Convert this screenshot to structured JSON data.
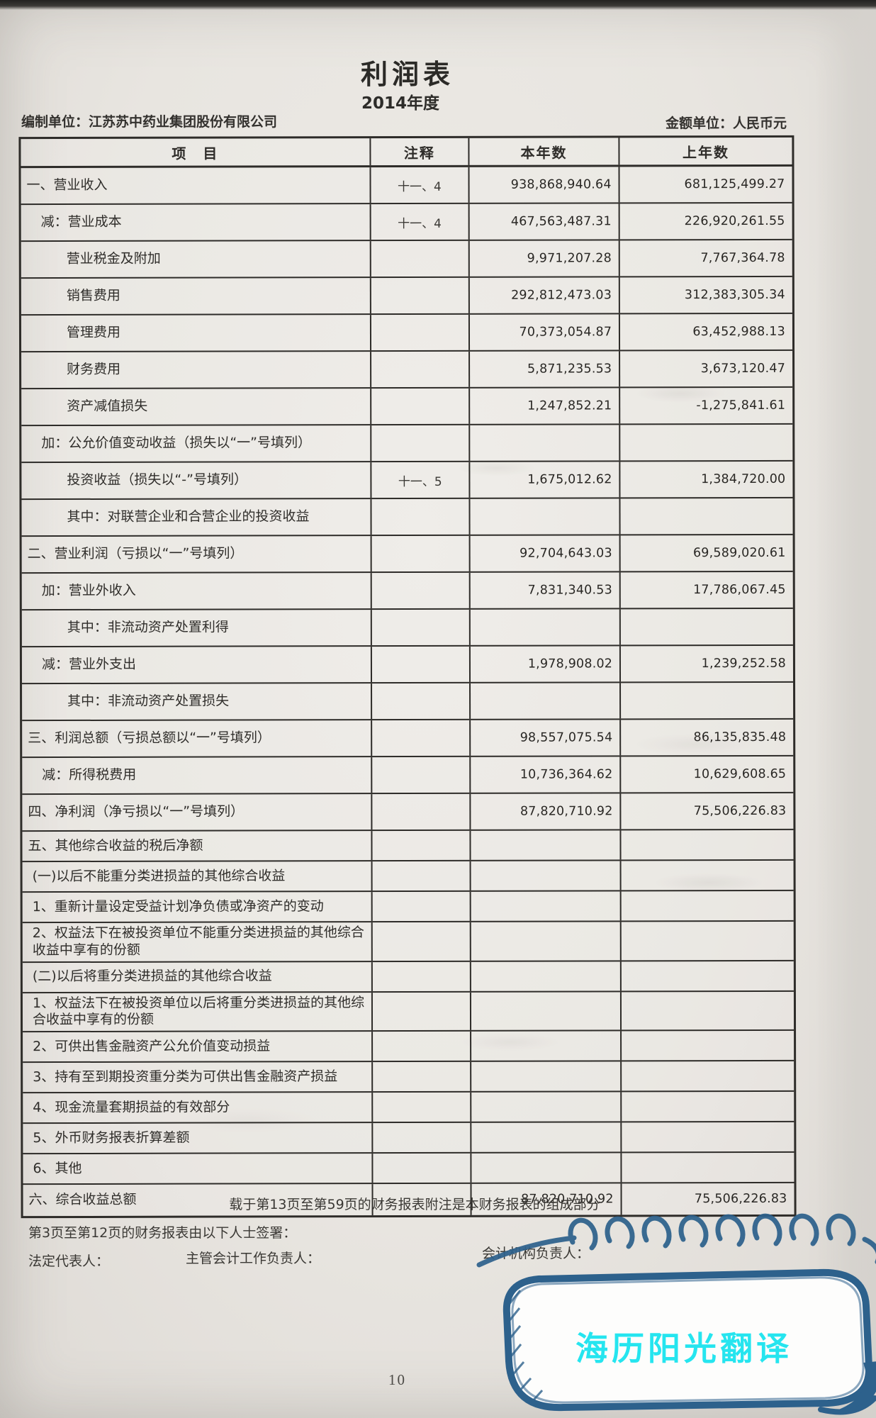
{
  "document": {
    "title": "利润表",
    "period": "2014年度",
    "prepared_by": "编制单位：江苏苏中药业集团股份有限公司",
    "currency_note": "金额单位：人民币元",
    "footnote": "载于第13页至第59页的财务报表附注是本财务报表的组成部分",
    "signature_intro": "第3页至第12页的财务报表由以下人士签署：",
    "signatory_legal": "法定代表人：",
    "signatory_chief_accounting": "主管会计工作负责人：",
    "signatory_accounting_dept": "会计机构负责人：",
    "page_number": "10",
    "watermark": "海历阳光翻译"
  },
  "colors": {
    "paper": "#e8e5e0",
    "table_line": "#2e2c29",
    "doodle_blue": "#2d618c",
    "watermark_cyan": "#25e5ef"
  },
  "table": {
    "headers": [
      "项　目",
      "注释",
      "本年数",
      "上年数"
    ],
    "rows": [
      {
        "item": "一、营业收入",
        "note": "十一、4",
        "current": "938,868,940.64",
        "prior": "681,125,499.27",
        "indent": 0
      },
      {
        "item": "减：营业成本",
        "note": "十一、4",
        "current": "467,563,487.31",
        "prior": "226,920,261.55",
        "indent": 1
      },
      {
        "item": "营业税金及附加",
        "note": "",
        "current": "9,971,207.28",
        "prior": "7,767,364.78",
        "indent": 2
      },
      {
        "item": "销售费用",
        "note": "",
        "current": "292,812,473.03",
        "prior": "312,383,305.34",
        "indent": 2
      },
      {
        "item": "管理费用",
        "note": "",
        "current": "70,373,054.87",
        "prior": "63,452,988.13",
        "indent": 2
      },
      {
        "item": "财务费用",
        "note": "",
        "current": "5,871,235.53",
        "prior": "3,673,120.47",
        "indent": 2
      },
      {
        "item": "资产减值损失",
        "note": "",
        "current": "1,247,852.21",
        "prior": "-1,275,841.61",
        "indent": 2
      },
      {
        "item": "加：公允价值变动收益（损失以“一”号填列）",
        "note": "",
        "current": "",
        "prior": "",
        "indent": 1
      },
      {
        "item": "投资收益（损失以“-”号填列）",
        "note": "十一、5",
        "current": "1,675,012.62",
        "prior": "1,384,720.00",
        "indent": 2
      },
      {
        "item": "其中：对联营企业和合营企业的投资收益",
        "note": "",
        "current": "",
        "prior": "",
        "indent": 2
      },
      {
        "item": "二、营业利润（亏损以“一”号填列）",
        "note": "",
        "current": "92,704,643.03",
        "prior": "69,589,020.61",
        "indent": 0
      },
      {
        "item": "加：营业外收入",
        "note": "",
        "current": "7,831,340.53",
        "prior": "17,786,067.45",
        "indent": 1
      },
      {
        "item": "其中：非流动资产处置利得",
        "note": "",
        "current": "",
        "prior": "",
        "indent": 2
      },
      {
        "item": "减：营业外支出",
        "note": "",
        "current": "1,978,908.02",
        "prior": "1,239,252.58",
        "indent": 1
      },
      {
        "item": "其中：非流动资产处置损失",
        "note": "",
        "current": "",
        "prior": "",
        "indent": 2
      },
      {
        "item": "三、利润总额（亏损总额以“一”号填列）",
        "note": "",
        "current": "98,557,075.54",
        "prior": "86,135,835.48",
        "indent": 0
      },
      {
        "item": "减：所得税费用",
        "note": "",
        "current": "10,736,364.62",
        "prior": "10,629,608.65",
        "indent": 1
      },
      {
        "item": "四、净利润（净亏损以“一”号填列）",
        "note": "",
        "current": "87,820,710.92",
        "prior": "75,506,226.83",
        "indent": 0
      },
      {
        "item": "五、其他综合收益的税后净额",
        "note": "",
        "current": "",
        "prior": "",
        "indent": 0
      },
      {
        "item": "(一)以后不能重分类进损益的其他综合收益",
        "note": "",
        "current": "",
        "prior": "",
        "indent": 3
      },
      {
        "item": "1、重新计量设定受益计划净负债或净资产的变动",
        "note": "",
        "current": "",
        "prior": "",
        "indent": 3
      },
      {
        "item": "2、权益法下在被投资单位不能重分类进损益的其他综合收益中享有的份额",
        "note": "",
        "current": "",
        "prior": "",
        "indent": 3
      },
      {
        "item": "(二)以后将重分类进损益的其他综合收益",
        "note": "",
        "current": "",
        "prior": "",
        "indent": 3
      },
      {
        "item": "1、权益法下在被投资单位以后将重分类进损益的其他综合收益中享有的份额",
        "note": "",
        "current": "",
        "prior": "",
        "indent": 3
      },
      {
        "item": "2、可供出售金融资产公允价值变动损益",
        "note": "",
        "current": "",
        "prior": "",
        "indent": 3
      },
      {
        "item": "3、持有至到期投资重分类为可供出售金融资产损益",
        "note": "",
        "current": "",
        "prior": "",
        "indent": 3
      },
      {
        "item": "4、现金流量套期损益的有效部分",
        "note": "",
        "current": "",
        "prior": "",
        "indent": 3
      },
      {
        "item": "5、外币财务报表折算差额",
        "note": "",
        "current": "",
        "prior": "",
        "indent": 3
      },
      {
        "item": "6、其他",
        "note": "",
        "current": "",
        "prior": "",
        "indent": 3
      },
      {
        "item": "六、综合收益总额",
        "note": "",
        "current": "87,820,710.92",
        "prior": "75,506,226.83",
        "indent": 0
      }
    ]
  }
}
